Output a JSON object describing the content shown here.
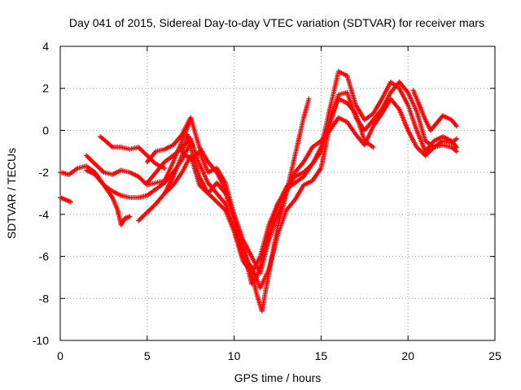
{
  "chart_data": {
    "type": "scatter",
    "title": "Day 041 of 2015, Sidereal Day-to-day VTEC variation (SDTVAR) for receiver mars",
    "xlabel": "GPS time / hours",
    "ylabel": "SDTVAR / TECUs",
    "xlim": [
      0,
      25
    ],
    "ylim": [
      -10,
      4
    ],
    "xticks": [
      0,
      5,
      10,
      15,
      20,
      25
    ],
    "yticks": [
      -10,
      -8,
      -6,
      -4,
      -2,
      0,
      2,
      4
    ],
    "grid": true,
    "marker": "+",
    "color": "#ff0000",
    "series": [
      {
        "x": [
          0.0,
          0.3,
          0.6
        ],
        "y": [
          -3.2,
          -3.3,
          -3.4
        ]
      },
      {
        "x": [
          0.0,
          0.5,
          1.0,
          1.5,
          2.0,
          2.5,
          3.0,
          3.3,
          3.5,
          3.7,
          4.0
        ],
        "y": [
          -2.0,
          -2.1,
          -1.8,
          -1.7,
          -2.0,
          -2.6,
          -3.2,
          -3.8,
          -4.5,
          -4.2,
          -4.1
        ]
      },
      {
        "x": [
          2.3,
          2.6,
          3.0,
          3.5,
          4.0,
          4.5,
          5.0,
          5.5,
          6.0
        ],
        "y": [
          -0.3,
          -0.5,
          -0.8,
          -0.8,
          -0.9,
          -0.8,
          -1.2,
          -1.6,
          -1.8
        ]
      },
      {
        "x": [
          1.5,
          2.0,
          2.5,
          3.0,
          3.5,
          4.0,
          4.5,
          5.0,
          5.5,
          6.0,
          6.5,
          7.0,
          7.5
        ],
        "y": [
          -1.2,
          -1.6,
          -2.0,
          -2.1,
          -1.9,
          -2.0,
          -2.2,
          -2.6,
          -2.5,
          -2.4,
          -1.5,
          -0.5,
          0.5
        ]
      },
      {
        "x": [
          1.5,
          2.0,
          2.5,
          3.0,
          3.5,
          4.0,
          4.5,
          5.0,
          5.5,
          6.0,
          6.5,
          7.0,
          7.5
        ],
        "y": [
          -1.9,
          -2.1,
          -2.6,
          -2.9,
          -3.1,
          -3.2,
          -3.2,
          -3.1,
          -2.8,
          -2.5,
          -2.0,
          -1.4,
          -0.6
        ]
      },
      {
        "x": [
          4.5,
          5.0,
          5.5,
          6.0,
          6.5,
          7.0,
          7.3,
          7.6
        ],
        "y": [
          -4.3,
          -3.9,
          -3.5,
          -3.0,
          -2.2,
          -1.2,
          -0.2,
          -0.7
        ]
      },
      {
        "x": [
          5.0,
          5.5,
          6.0,
          6.5,
          7.0,
          7.5,
          8.0,
          8.5,
          9.0,
          9.5,
          10.0,
          10.5,
          11.0,
          11.3,
          11.6,
          12.0,
          12.5,
          13.0,
          13.5,
          14.0,
          14.5,
          15.0,
          15.5,
          16.0,
          16.5,
          17.0,
          17.5,
          18.0,
          18.5,
          19.0,
          19.5,
          20.0,
          20.5,
          21.0,
          21.5,
          22.0,
          22.5,
          22.8
        ],
        "y": [
          -1.5,
          -1.0,
          -0.9,
          -0.7,
          -0.2,
          0.6,
          -0.8,
          -1.5,
          -2.0,
          -2.8,
          -4.0,
          -5.5,
          -7.3,
          -7.0,
          -6.2,
          -5.0,
          -3.6,
          -2.7,
          -2.2,
          -2.0,
          -1.6,
          -0.8,
          1.0,
          2.8,
          2.6,
          1.2,
          0.5,
          0.8,
          1.5,
          2.3,
          2.0,
          1.2,
          0.0,
          -1.0,
          -0.5,
          -0.3,
          -0.5,
          -0.8
        ]
      },
      {
        "x": [
          5.0,
          5.5,
          6.0,
          6.5,
          7.0,
          7.5,
          8.0,
          8.5,
          9.0,
          9.5,
          10.0,
          10.5,
          11.0,
          11.5,
          12.0,
          12.5,
          13.0,
          13.5,
          14.0,
          14.5,
          15.0,
          15.5,
          16.0,
          16.5,
          17.0,
          17.5,
          18.0,
          18.5,
          19.0,
          19.5,
          20.0,
          20.5,
          21.0,
          21.5,
          22.0,
          22.5,
          22.8
        ],
        "y": [
          -2.5,
          -2.0,
          -1.5,
          -1.2,
          -0.8,
          -0.4,
          -1.6,
          -2.5,
          -3.0,
          -3.5,
          -4.6,
          -6.0,
          -6.5,
          -7.5,
          -6.6,
          -5.0,
          -3.8,
          -3.3,
          -2.6,
          -2.4,
          -1.8,
          0.2,
          1.7,
          1.8,
          0.6,
          0.0,
          0.5,
          1.0,
          1.8,
          2.3,
          1.8,
          0.9,
          -0.5,
          -0.8,
          -0.5,
          -0.6,
          -0.4
        ]
      },
      {
        "x": [
          6.0,
          6.5,
          7.0,
          7.5,
          8.0,
          8.5,
          9.0,
          9.5,
          10.0,
          10.5,
          11.0,
          11.3,
          11.6,
          12.0,
          12.5,
          13.0,
          13.5,
          14.0,
          14.3
        ],
        "y": [
          -3.0,
          -2.6,
          -2.0,
          -1.2,
          -2.6,
          -3.0,
          -3.4,
          -3.8,
          -4.8,
          -6.2,
          -6.8,
          -7.8,
          -8.6,
          -6.8,
          -4.6,
          -3.0,
          -1.2,
          0.6,
          1.5
        ]
      },
      {
        "x": [
          7.0,
          7.5,
          8.0,
          8.5,
          9.0,
          9.5,
          10.0,
          10.5,
          11.0,
          11.5,
          12.0,
          12.5,
          13.0,
          13.5,
          14.0,
          14.5,
          15.0,
          15.5,
          16.0,
          16.5,
          17.0,
          17.5,
          18.0,
          18.5,
          19.0,
          19.5,
          20.0,
          20.5,
          21.0,
          21.5,
          22.0,
          22.5,
          22.8
        ],
        "y": [
          -1.0,
          -1.4,
          -1.0,
          -2.0,
          -1.8,
          -2.5,
          -4.0,
          -5.2,
          -6.0,
          -6.8,
          -5.2,
          -4.0,
          -3.0,
          -2.0,
          -1.5,
          -0.8,
          -0.5,
          0.0,
          0.6,
          0.4,
          -0.2,
          -0.7,
          0.2,
          0.8,
          1.5,
          1.0,
          0.0,
          -0.8,
          -1.2,
          -0.8,
          -0.7,
          -0.8,
          -1.0
        ]
      },
      {
        "x": [
          7.5,
          8.0,
          8.5,
          9.0,
          9.5,
          10.0,
          10.5,
          11.0,
          11.5,
          12.0,
          12.5,
          13.0,
          13.5,
          14.0,
          14.5,
          15.0,
          15.5,
          16.0,
          16.5,
          17.0,
          17.5,
          18.0
        ],
        "y": [
          -0.8,
          -2.2,
          -3.0,
          -2.5,
          -3.0,
          -4.2,
          -5.5,
          -6.8,
          -6.0,
          -4.5,
          -3.5,
          -2.8,
          -2.5,
          -2.2,
          -1.6,
          -1.0,
          0.5,
          1.5,
          1.3,
          0.8,
          -0.5,
          -0.8
        ]
      },
      {
        "x": [
          20.3,
          20.6,
          21.0,
          21.3,
          21.6,
          22.0,
          22.5,
          22.8
        ],
        "y": [
          1.9,
          1.3,
          0.5,
          0.0,
          0.3,
          0.7,
          0.5,
          0.2
        ]
      }
    ]
  }
}
